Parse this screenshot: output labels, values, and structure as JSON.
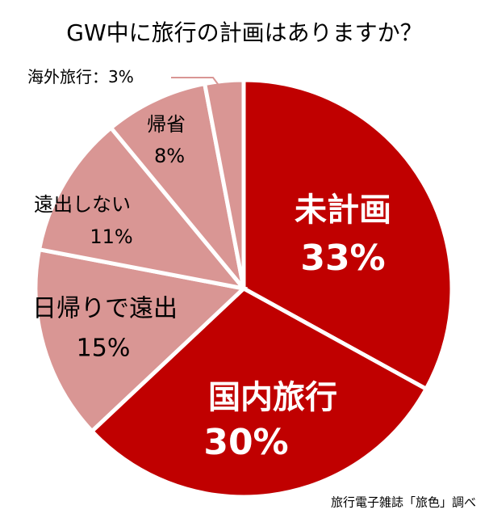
{
  "chart_data": {
    "type": "pie",
    "title": "GW中に旅行の計画はありますか？",
    "categories": [
      "未計画",
      "国内旅行",
      "日帰りで遠出",
      "遠出しない",
      "帰省",
      "海外旅行"
    ],
    "values": [
      33,
      30,
      15,
      11,
      8,
      3
    ],
    "value_labels": [
      "33%",
      "30%",
      "15%",
      "11%",
      "8%",
      "：3%"
    ],
    "colors": [
      "#c00000",
      "#c00000",
      "#d99694",
      "#d99694",
      "#d99694",
      "#d99694"
    ],
    "source": "旅行電子雑誌「旅色」調べ"
  }
}
